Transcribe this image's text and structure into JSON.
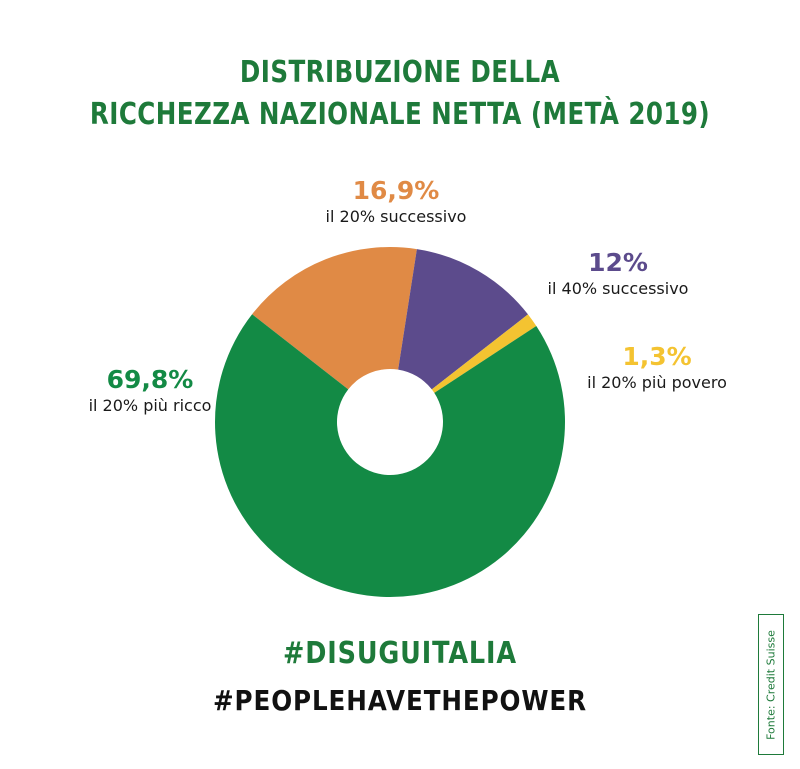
{
  "title": {
    "line1": "DISTRIBUZIONE DELLA",
    "line2": "RICCHEZZA NAZIONALE NETTA (METÀ 2019)"
  },
  "chart_data": {
    "type": "pie",
    "title": "DISTRIBUZIONE DELLA RICCHEZZA NAZIONALE NETTA (METÀ 2019)",
    "donut": true,
    "slices": [
      {
        "label": "il 20% più ricco",
        "value": 69.8,
        "value_label": "69,8%",
        "color": "#138a45"
      },
      {
        "label": "il 20% successivo",
        "value": 16.9,
        "value_label": "16,9%",
        "color": "#e08a45"
      },
      {
        "label": "il 40% successivo",
        "value": 12,
        "value_label": "12%",
        "color": "#5c4b8c"
      },
      {
        "label": "il 20% più povero",
        "value": 1.3,
        "value_label": "1,3%",
        "color": "#f4c331"
      }
    ]
  },
  "hashtags": {
    "primary": "#DISUGUITALIA",
    "secondary": "#PEOPLEHAVETHEPOWER"
  },
  "source": "Fonte: Credit Suisse",
  "colors": {
    "title": "#1e7a3a",
    "richest": "#138a45",
    "next20": "#e08a45",
    "next40": "#5c4b8c",
    "poorest": "#f4c331"
  }
}
